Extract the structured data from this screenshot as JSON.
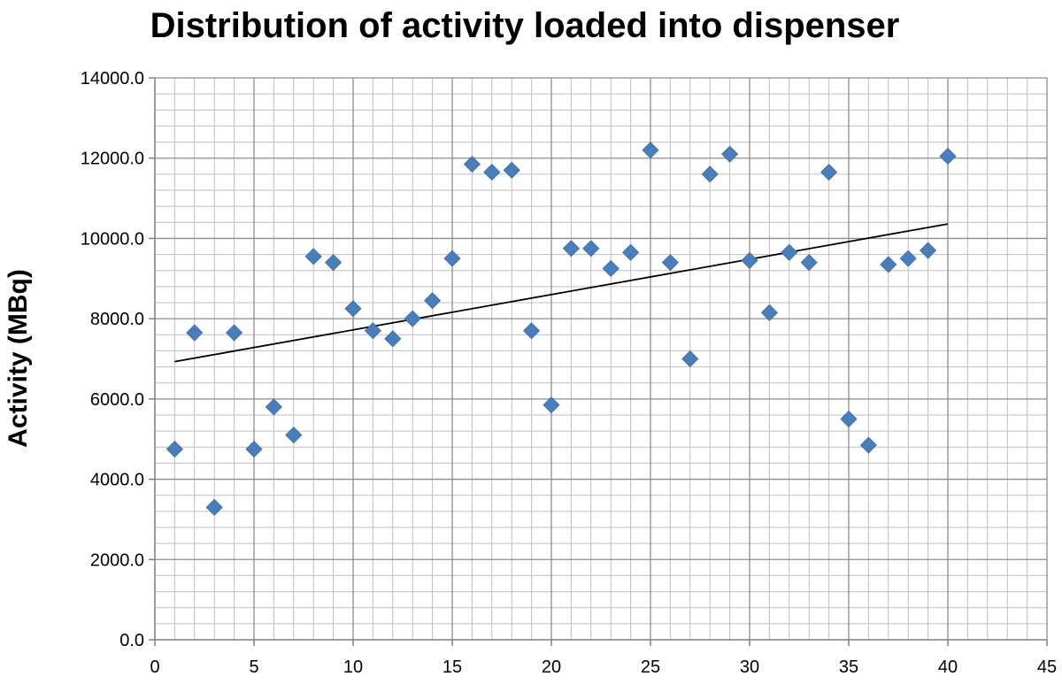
{
  "chart_data": {
    "type": "scatter",
    "title": "Distribution of activity loaded into dispenser",
    "xlabel": "",
    "ylabel": "Activity (MBq)",
    "xlim": [
      0,
      45
    ],
    "ylim": [
      0,
      14000
    ],
    "x_ticks": [
      "0",
      "5",
      "10",
      "15",
      "20",
      "25",
      "30",
      "35",
      "40",
      "45"
    ],
    "y_ticks": [
      "0.0",
      "2000.0",
      "4000.0",
      "6000.0",
      "8000.0",
      "10000.0",
      "12000.0",
      "14000.0"
    ],
    "grid": true,
    "marker": "diamond",
    "marker_color": "#4a7ebb",
    "trendline_color": "#000000",
    "series": [
      {
        "x": [
          1,
          2,
          3,
          4,
          5,
          6,
          7,
          8,
          9,
          10,
          11,
          12,
          13,
          14,
          15,
          16,
          17,
          18,
          19,
          20,
          21,
          22,
          23,
          24,
          25,
          26,
          27,
          28,
          29,
          30,
          31,
          32,
          33,
          34,
          35,
          36,
          37,
          38,
          39,
          40
        ],
        "y": [
          4750,
          7650,
          3300,
          7650,
          4750,
          5800,
          5100,
          9550,
          9400,
          8250,
          7700,
          7500,
          8000,
          8450,
          9500,
          11850,
          11650,
          11700,
          7700,
          5850,
          9750,
          9750,
          9250,
          9650,
          12200,
          9400,
          7000,
          11600,
          12100,
          9450,
          8150,
          9650,
          9400,
          11650,
          5500,
          4850,
          9350,
          9500,
          9700,
          12050
        ]
      }
    ],
    "trendline": {
      "type": "linear",
      "x": [
        1,
        40
      ],
      "y": [
        6930,
        10360
      ]
    }
  }
}
